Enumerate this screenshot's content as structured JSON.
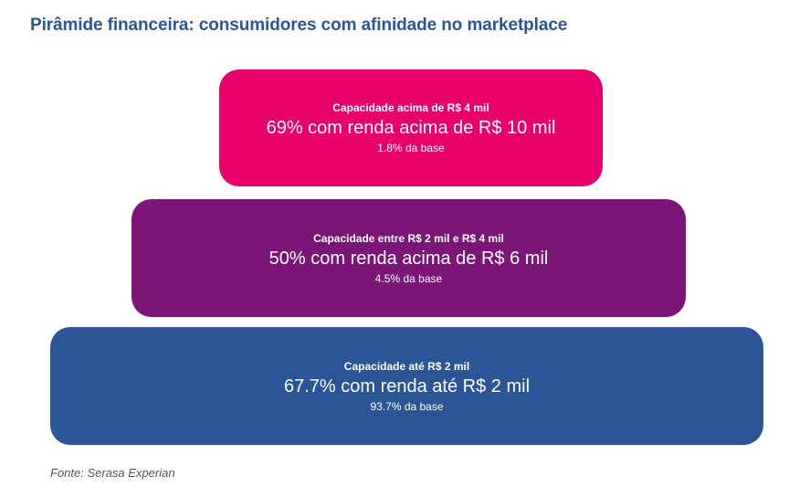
{
  "title": "Pirâmide financeira: consumidores com afinidade no marketplace",
  "tiers": [
    {
      "heading": "Capacidade acima de R$ 4 mil",
      "main": "69% com renda acima de R$ 10 mil",
      "share": "1.8% da base",
      "color": "#e8006b"
    },
    {
      "heading": "Capacidade entre R$ 2 mil e R$ 4 mil",
      "main": "50% com renda acima de R$ 6 mil",
      "share": "4.5% da base",
      "color": "#7b1578"
    },
    {
      "heading": "Capacidade até R$ 2 mil",
      "main": "67.7% com renda até R$ 2 mil",
      "share": "93.7% da base",
      "color": "#2b5597"
    }
  ],
  "source": "Fonte: Serasa Experian"
}
